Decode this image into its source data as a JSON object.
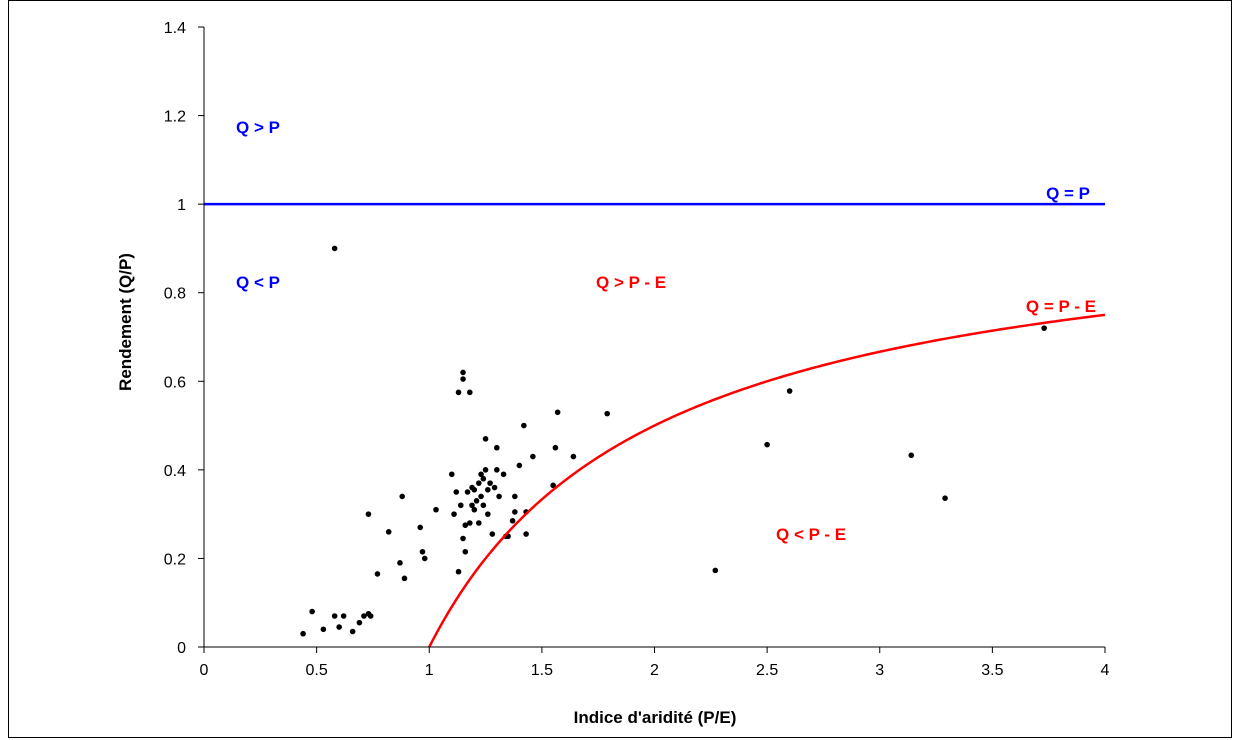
{
  "chart_data": {
    "type": "scatter",
    "title": "",
    "xlabel": "Indice d'aridité (P/E)",
    "ylabel": "Rendement (Q/P)",
    "xlim": [
      0,
      4
    ],
    "ylim": [
      0,
      1.4
    ],
    "x_ticks": [
      "0",
      "0.5",
      "1",
      "1.5",
      "2",
      "2.5",
      "3",
      "3.5",
      "4"
    ],
    "y_ticks": [
      "0",
      "0.2",
      "0.4",
      "0.6",
      "0.8",
      "1",
      "1.2",
      "1.4"
    ],
    "grid": false,
    "colors": {
      "points": "#000000",
      "limit_water": "#0000ff",
      "limit_energy": "#ff0000"
    },
    "annotations": {
      "q_gt_p": "Q > P",
      "q_lt_p": "Q < P",
      "q_eq_p": "Q = P",
      "q_gt_pe": "Q > P - E",
      "q_eq_pe": "Q = P - E",
      "q_lt_pe": "Q < P - E"
    },
    "lines": [
      {
        "label": "Q = P",
        "equation": "Q/P = 1",
        "color": "#0000ff"
      },
      {
        "label": "Q = P - E",
        "equation": "Q/P = 1 - E/P",
        "color": "#ff0000",
        "x_start": 1,
        "x_end": 4
      }
    ],
    "points": [
      [
        0.44,
        0.03
      ],
      [
        0.48,
        0.08
      ],
      [
        0.53,
        0.04
      ],
      [
        0.58,
        0.07
      ],
      [
        0.6,
        0.045
      ],
      [
        0.62,
        0.07
      ],
      [
        0.66,
        0.035
      ],
      [
        0.69,
        0.055
      ],
      [
        0.71,
        0.07
      ],
      [
        0.73,
        0.075
      ],
      [
        0.74,
        0.07
      ],
      [
        0.73,
        0.3
      ],
      [
        0.77,
        0.165
      ],
      [
        0.82,
        0.26
      ],
      [
        0.87,
        0.19
      ],
      [
        0.88,
        0.34
      ],
      [
        0.89,
        0.155
      ],
      [
        0.96,
        0.27
      ],
      [
        0.97,
        0.215
      ],
      [
        0.98,
        0.2
      ],
      [
        1.03,
        0.31
      ],
      [
        1.1,
        0.39
      ],
      [
        1.11,
        0.3
      ],
      [
        1.12,
        0.35
      ],
      [
        1.13,
        0.17
      ],
      [
        1.14,
        0.32
      ],
      [
        1.15,
        0.245
      ],
      [
        1.16,
        0.215
      ],
      [
        1.16,
        0.275
      ],
      [
        1.17,
        0.35
      ],
      [
        1.18,
        0.28
      ],
      [
        1.19,
        0.32
      ],
      [
        1.19,
        0.36
      ],
      [
        1.2,
        0.31
      ],
      [
        1.2,
        0.355
      ],
      [
        1.21,
        0.33
      ],
      [
        1.22,
        0.28
      ],
      [
        1.22,
        0.37
      ],
      [
        1.23,
        0.34
      ],
      [
        1.23,
        0.39
      ],
      [
        1.24,
        0.38
      ],
      [
        1.24,
        0.32
      ],
      [
        1.25,
        0.47
      ],
      [
        1.25,
        0.4
      ],
      [
        1.26,
        0.3
      ],
      [
        1.26,
        0.355
      ],
      [
        1.27,
        0.37
      ],
      [
        1.28,
        0.255
      ],
      [
        1.29,
        0.36
      ],
      [
        1.3,
        0.4
      ],
      [
        1.3,
        0.45
      ],
      [
        1.31,
        0.34
      ],
      [
        1.33,
        0.39
      ],
      [
        1.34,
        0.25
      ],
      [
        1.35,
        0.25
      ],
      [
        1.37,
        0.285
      ],
      [
        1.38,
        0.34
      ],
      [
        1.38,
        0.305
      ],
      [
        1.4,
        0.41
      ],
      [
        1.42,
        0.5
      ],
      [
        1.43,
        0.255
      ],
      [
        1.43,
        0.305
      ],
      [
        1.46,
        0.43
      ],
      [
        1.13,
        0.575
      ],
      [
        1.15,
        0.62
      ],
      [
        1.15,
        0.605
      ],
      [
        1.18,
        0.575
      ],
      [
        1.55,
        0.365
      ],
      [
        1.56,
        0.45
      ],
      [
        1.57,
        0.53
      ],
      [
        1.64,
        0.43
      ],
      [
        1.79,
        0.527
      ],
      [
        0.58,
        0.9
      ],
      [
        2.27,
        0.173
      ],
      [
        2.5,
        0.457
      ],
      [
        2.6,
        0.578
      ],
      [
        3.14,
        0.433
      ],
      [
        3.29,
        0.336
      ],
      [
        3.73,
        0.72
      ]
    ]
  }
}
